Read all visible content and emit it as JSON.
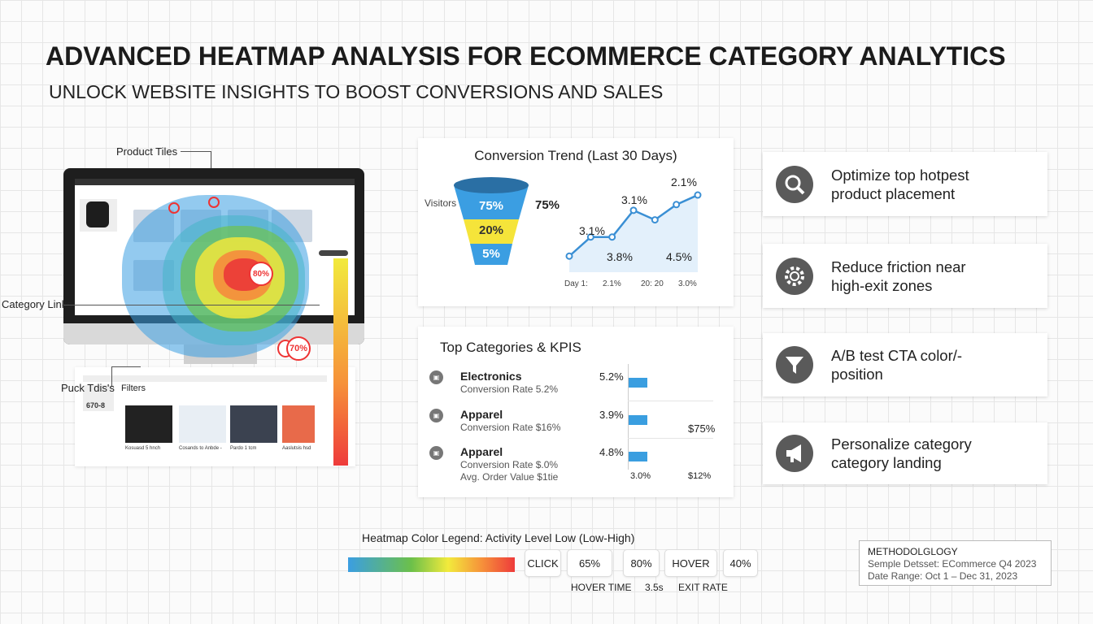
{
  "header": {
    "title": "ADVANCED HEATMAP ANALYSIS FOR ECOMMERCE CATEGORY ANALYTICS",
    "subtitle": "UNLOCK WEBSITE INSIGHTS TO BOOST CONVERSIONS AND SALES"
  },
  "illustration": {
    "callouts": {
      "product_tiles": "Product Tiles",
      "category_links": "Category Links",
      "puck_tiles": "Puck Tdis's"
    },
    "hotspots": {
      "center": "80%",
      "bottom": "70%"
    },
    "panel": {
      "filters": "Filters",
      "thumb_code": "670-8",
      "products": [
        "Kosuasd 5 hnch",
        "Cosands to Anbde -",
        "Pardo 1 tcm",
        "Aaslutsis hsd"
      ]
    }
  },
  "conversion_trend": {
    "title": "Conversion Trend (Last 30 Days)",
    "funnel": {
      "label": "Visitors",
      "side_value": "75%",
      "stages": [
        "75%",
        "20%",
        "5%"
      ],
      "colors": [
        "#3b9ee2",
        "#f5e43a",
        "#3b9ee2"
      ]
    },
    "chart_data": {
      "type": "line",
      "series": [
        {
          "name": "Conversion",
          "values": [
            1.0,
            2.0,
            2.0,
            3.4,
            2.9,
            3.7,
            4.2
          ]
        }
      ],
      "point_labels": [
        "3.1%",
        "3.8%",
        "3.1%",
        "4.5%",
        "2.1%"
      ],
      "x_labels": [
        "Day 1:",
        "2.1%",
        "20: 20",
        "3.0%"
      ]
    }
  },
  "kpis": {
    "title": "Top Categories & KPIS",
    "rows": [
      {
        "icon": "electronics-icon",
        "name": "Electronics",
        "sub": "Conversion Rate 5.2%",
        "value": "5.2%"
      },
      {
        "icon": "apparel-icon",
        "name": "Apparel",
        "sub": "Conversion Rate $16%",
        "value": "3.9%"
      },
      {
        "icon": "apparel-icon",
        "name": "Apparel",
        "sub": "Conversion Rate $.0%",
        "sub2": "Avg. Order Value $1tie",
        "value": "4.8%"
      }
    ],
    "side_label": "$75%",
    "axis": [
      "3.0%",
      "$12%"
    ]
  },
  "recommendations": [
    {
      "icon": "search-icon",
      "text": "Optimize top hotpest product placement"
    },
    {
      "icon": "gear-icon",
      "text": "Reduce friction near high-exit zones"
    },
    {
      "icon": "funnel-icon",
      "text": "A/B test CTA color/-position"
    },
    {
      "icon": "megaphone-icon",
      "text": "Personalize category category landing"
    }
  ],
  "legend": {
    "title": "Heatmap Color Legend: Activity Level Low (Low-High)",
    "chips": [
      "CLICK",
      "65%",
      "80%",
      "HOVER",
      "40%"
    ],
    "captions": [
      "HOVER TIME",
      "3.5s",
      "EXIT RATE"
    ],
    "gradient": [
      "#3b9ee2",
      "#6cc04a",
      "#f2ea3c",
      "#f6923a",
      "#ee3b3b"
    ]
  },
  "methodology": {
    "title": "METHODOLGLOGY",
    "dataset": "Semple Detsset: ECommerce Q4 2023",
    "range": "Date Range: Oct 1 – Dec 31, 2023"
  }
}
